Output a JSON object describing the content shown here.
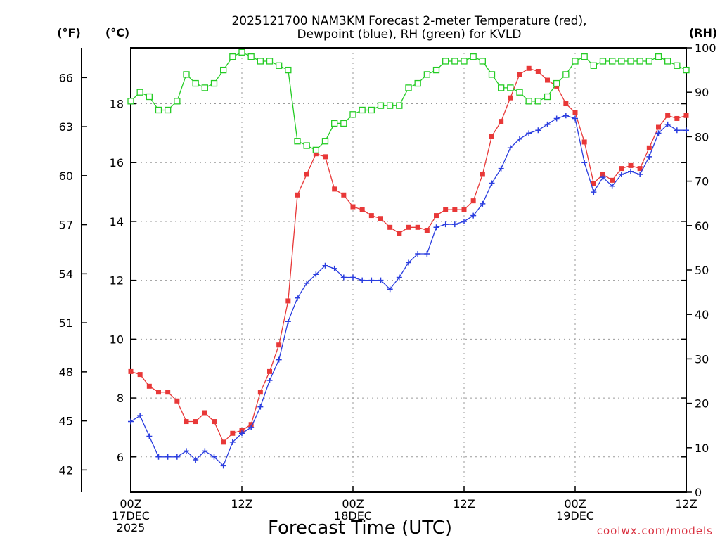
{
  "chart_data": {
    "type": "line",
    "title": "2025121700 NAM3KM Forecast 2-meter Temperature (red),",
    "subtitle": "Dewpoint (blue), RH (green) for KVLD",
    "xlabel": "Forecast Time (UTC)",
    "credit": "coolwx.com/models",
    "y_left_unit": "(°C)",
    "y_far_left_unit": "(°F)",
    "y_right_unit": "(RH)",
    "x_hours_range": [
      0,
      60
    ],
    "c_range": [
      4.8,
      19.9
    ],
    "rh_range": [
      0,
      100
    ],
    "c_ticks": [
      6,
      8,
      10,
      12,
      14,
      16,
      18
    ],
    "f_ticks": [
      42,
      45,
      48,
      51,
      54,
      57,
      60,
      63,
      66
    ],
    "rh_ticks": [
      0,
      10,
      20,
      30,
      40,
      50,
      60,
      70,
      80,
      90,
      100
    ],
    "x_ticks": [
      {
        "hour": 0,
        "lines": [
          "00Z",
          "17DEC",
          "2025"
        ]
      },
      {
        "hour": 12,
        "lines": [
          "12Z"
        ]
      },
      {
        "hour": 24,
        "lines": [
          "00Z",
          "18DEC"
        ]
      },
      {
        "hour": 36,
        "lines": [
          "12Z"
        ]
      },
      {
        "hour": 48,
        "lines": [
          "00Z",
          "19DEC"
        ]
      },
      {
        "hour": 60,
        "lines": [
          "12Z"
        ]
      }
    ],
    "hours": [
      0,
      1,
      2,
      3,
      4,
      5,
      6,
      7,
      8,
      9,
      10,
      11,
      12,
      13,
      14,
      15,
      16,
      17,
      18,
      19,
      20,
      21,
      22,
      23,
      24,
      25,
      26,
      27,
      28,
      29,
      30,
      31,
      32,
      33,
      34,
      35,
      36,
      37,
      38,
      39,
      40,
      41,
      42,
      43,
      44,
      45,
      46,
      47,
      48,
      49,
      50,
      51,
      52,
      53,
      54,
      55,
      56,
      57,
      58,
      59,
      60
    ],
    "series": [
      {
        "name": "Temperature (°C)",
        "color": "#e83838",
        "marker": "filled-square",
        "axis": "celsius",
        "values": [
          8.9,
          8.8,
          8.4,
          8.2,
          8.2,
          7.9,
          7.2,
          7.2,
          7.5,
          7.2,
          6.5,
          6.8,
          6.9,
          7.1,
          8.2,
          8.9,
          9.8,
          11.3,
          14.9,
          15.6,
          16.3,
          16.2,
          15.1,
          14.9,
          14.5,
          14.4,
          14.2,
          14.1,
          13.8,
          13.6,
          13.8,
          13.8,
          13.7,
          14.2,
          14.4,
          14.4,
          14.4,
          14.7,
          15.6,
          16.9,
          17.4,
          18.2,
          19.0,
          19.2,
          19.1,
          18.8,
          18.6,
          18.0,
          17.7,
          16.7,
          15.3,
          15.6,
          15.4,
          15.8,
          15.9,
          15.8,
          16.5,
          17.2,
          17.6,
          17.5,
          17.6
        ]
      },
      {
        "name": "Dewpoint (°C)",
        "color": "#2a3ddf",
        "marker": "plus",
        "axis": "celsius",
        "values": [
          7.2,
          7.4,
          6.7,
          6.0,
          6.0,
          6.0,
          6.2,
          5.9,
          6.2,
          6.0,
          5.7,
          6.5,
          6.8,
          7.0,
          7.7,
          8.6,
          9.3,
          10.6,
          11.4,
          11.9,
          12.2,
          12.5,
          12.4,
          12.1,
          12.1,
          12.0,
          12.0,
          12.0,
          11.7,
          12.1,
          12.6,
          12.9,
          12.9,
          13.8,
          13.9,
          13.9,
          14.0,
          14.2,
          14.6,
          15.3,
          15.8,
          16.5,
          16.8,
          17.0,
          17.1,
          17.3,
          17.5,
          17.6,
          17.5,
          16.0,
          15.0,
          15.5,
          15.2,
          15.6,
          15.7,
          15.6,
          16.2,
          17.0,
          17.3,
          17.1,
          17.1
        ]
      },
      {
        "name": "RH (%)",
        "color": "#24cc24",
        "marker": "open-square",
        "axis": "rh",
        "values": [
          88,
          90,
          89,
          86,
          86,
          88,
          94,
          92,
          91,
          92,
          95,
          98,
          99,
          98,
          97,
          97,
          96,
          95,
          79,
          78,
          77,
          79,
          83,
          83,
          85,
          86,
          86,
          87,
          87,
          87,
          91,
          92,
          94,
          95,
          97,
          97,
          97,
          98,
          97,
          94,
          91,
          91,
          90,
          88,
          88,
          89,
          92,
          94,
          97,
          98,
          96,
          97,
          97,
          97,
          97,
          97,
          97,
          98,
          97,
          96,
          95
        ]
      }
    ]
  }
}
